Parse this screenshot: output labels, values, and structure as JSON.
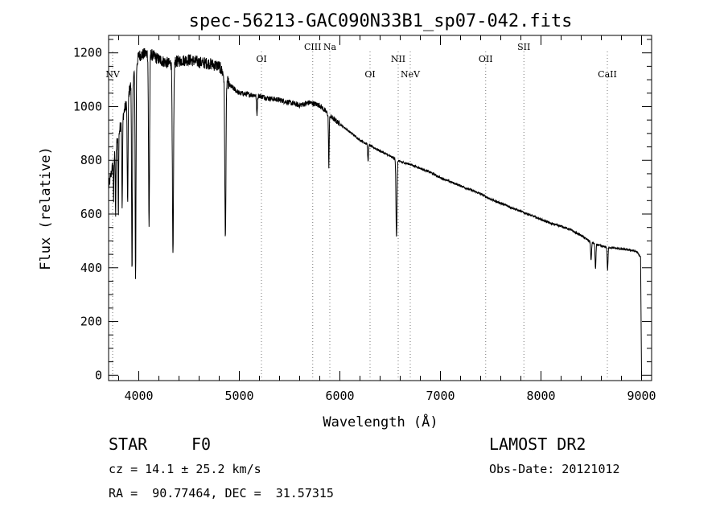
{
  "chart_data": {
    "type": "line",
    "title": "spec-56213-GAC090N33B1_sp07-042.fits",
    "xlabel": "Wavelength (Å)",
    "ylabel": "Flux (relative)",
    "xlim": [
      3700,
      9100
    ],
    "ylim": [
      -20,
      1265
    ],
    "x_ticks": [
      4000,
      5000,
      6000,
      7000,
      8000,
      9000
    ],
    "y_ticks": [
      0,
      200,
      400,
      600,
      800,
      1000,
      1200
    ],
    "grid": false,
    "continuum": {
      "x": [
        3700,
        3800,
        3900,
        4000,
        4100,
        4200,
        4300,
        4400,
        4500,
        4600,
        4700,
        4800,
        4900,
        5000,
        5100,
        5200,
        5300,
        5400,
        5500,
        5600,
        5700,
        5800,
        5900,
        6000,
        6100,
        6200,
        6300,
        6400,
        6500,
        6600,
        6700,
        6800,
        6900,
        7000,
        7100,
        7200,
        7300,
        7400,
        7500,
        7600,
        7700,
        7800,
        7900,
        8000,
        8100,
        8200,
        8300,
        8400,
        8500,
        8600,
        8700,
        8800,
        8900,
        8950,
        8990
      ],
      "y": [
        700,
        900,
        1050,
        1190,
        1200,
        1175,
        1160,
        1170,
        1175,
        1165,
        1160,
        1150,
        1080,
        1050,
        1045,
        1040,
        1030,
        1025,
        1015,
        1005,
        1015,
        1005,
        965,
        935,
        905,
        875,
        855,
        835,
        815,
        795,
        785,
        770,
        755,
        735,
        720,
        705,
        690,
        675,
        655,
        640,
        625,
        610,
        595,
        580,
        565,
        555,
        540,
        520,
        495,
        480,
        475,
        470,
        465,
        460,
        440
      ]
    },
    "absorption_lines": [
      {
        "x": 3750,
        "depth": 150,
        "width": 4
      },
      {
        "x": 3770,
        "depth": 250,
        "width": 4
      },
      {
        "x": 3797,
        "depth": 300,
        "width": 4
      },
      {
        "x": 3835,
        "depth": 330,
        "width": 5
      },
      {
        "x": 3889,
        "depth": 400,
        "width": 6
      },
      {
        "x": 3933,
        "depth": 720,
        "width": 6
      },
      {
        "x": 3968,
        "depth": 790,
        "width": 6
      },
      {
        "x": 4102,
        "depth": 640,
        "width": 7
      },
      {
        "x": 4340,
        "depth": 730,
        "width": 8
      },
      {
        "x": 4861,
        "depth": 600,
        "width": 8
      },
      {
        "x": 5175,
        "depth": 70,
        "width": 6
      },
      {
        "x": 5890,
        "depth": 190,
        "width": 5
      },
      {
        "x": 6280,
        "depth": 60,
        "width": 6
      },
      {
        "x": 6563,
        "depth": 290,
        "width": 7
      },
      {
        "x": 8498,
        "depth": 70,
        "width": 6
      },
      {
        "x": 8542,
        "depth": 95,
        "width": 6
      },
      {
        "x": 8662,
        "depth": 85,
        "width": 6
      }
    ],
    "end_drop": {
      "x": 9000,
      "y": 0
    },
    "line_markers": [
      {
        "label": "NV",
        "x": 3740,
        "row": 3
      },
      {
        "label": "OI",
        "x": 5220,
        "row": 2
      },
      {
        "label": "CIII",
        "x": 5730,
        "row": 1
      },
      {
        "label": "Na",
        "x": 5900,
        "row": 1
      },
      {
        "label": "OI",
        "x": 6300,
        "row": 3
      },
      {
        "label": "NII",
        "x": 6580,
        "row": 2
      },
      {
        "label": "NeV",
        "x": 6700,
        "row": 3
      },
      {
        "label": "OII",
        "x": 7450,
        "row": 2
      },
      {
        "label": "SII",
        "x": 7830,
        "row": 1
      },
      {
        "label": "CaII",
        "x": 8660,
        "row": 3
      }
    ]
  },
  "info": {
    "object_type": "STAR",
    "subclass": "F0",
    "survey": "LAMOST DR2",
    "redshift": "cz = 14.1 ± 25.2 km/s",
    "obs_date": "Obs-Date: 20121012",
    "coords": "RA =  90.77464, DEC =  31.57315"
  }
}
